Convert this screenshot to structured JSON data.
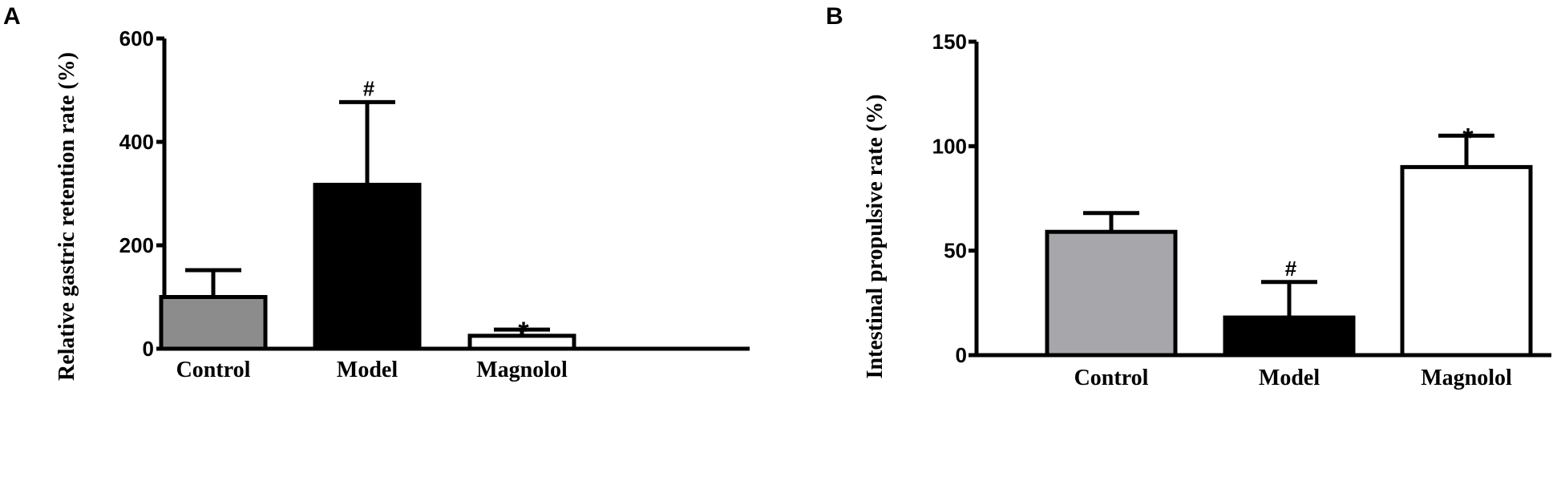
{
  "chart_data": [
    {
      "type": "bar",
      "panel": "A",
      "categories": [
        "Control",
        "Model",
        "Magnolol"
      ],
      "values": [
        100,
        317,
        25
      ],
      "errors": [
        52,
        160,
        12
      ],
      "significance": [
        "",
        "#",
        "*"
      ],
      "bar_colors": [
        "#8c8c8c",
        "#000000",
        "#ffffff"
      ],
      "ylabel": "Relative gastric retention rate (%)",
      "xlabel": "",
      "ylim": [
        0,
        600
      ],
      "yticks": [
        0,
        200,
        400,
        600
      ],
      "grid": false
    },
    {
      "type": "bar",
      "panel": "B",
      "categories": [
        "Control",
        "Model",
        "Magnolol"
      ],
      "values": [
        59,
        18,
        90
      ],
      "errors": [
        9,
        17,
        15
      ],
      "significance": [
        "",
        "#",
        "*"
      ],
      "bar_colors": [
        "#a7a7ab",
        "#000000",
        "#ffffff"
      ],
      "ylabel": "Intestinal propulsive rate (%)",
      "xlabel": "",
      "ylim": [
        0,
        150
      ],
      "yticks": [
        0,
        50,
        100,
        150
      ],
      "grid": false
    }
  ]
}
